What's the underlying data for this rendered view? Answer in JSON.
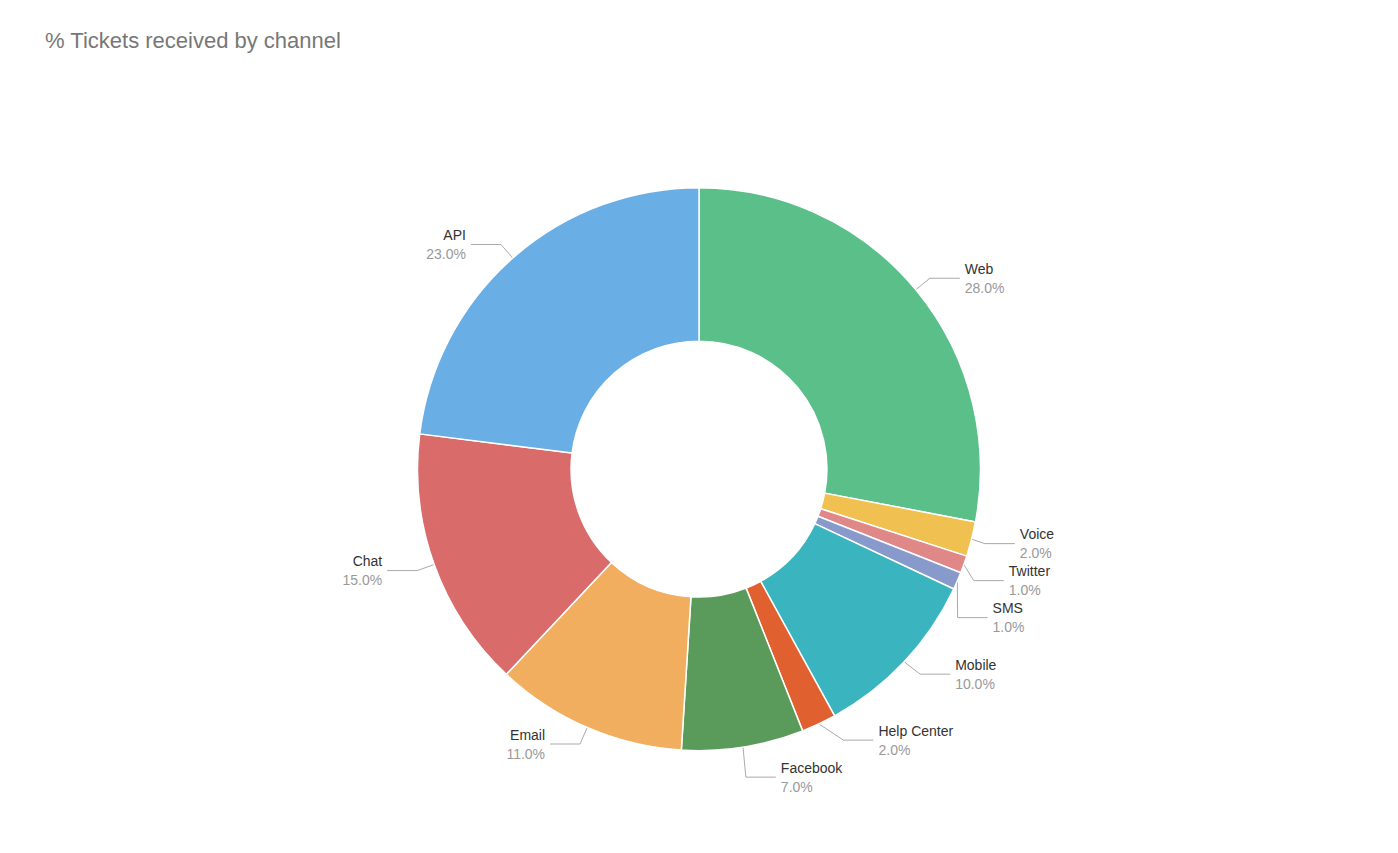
{
  "chart_data": {
    "type": "pie",
    "title": "% Tickets received by channel",
    "categories": [
      "Web",
      "Voice",
      "Twitter",
      "SMS",
      "Mobile",
      "Help Center",
      "Facebook",
      "Email",
      "Chat",
      "API"
    ],
    "values": [
      28.0,
      2.0,
      1.0,
      1.0,
      10.0,
      2.0,
      7.0,
      11.0,
      15.0,
      23.0
    ],
    "value_labels": [
      "28.0%",
      "2.0%",
      "1.0%",
      "1.0%",
      "10.0%",
      "2.0%",
      "7.0%",
      "11.0%",
      "15.0%",
      "23.0%"
    ],
    "colors": [
      "#5bbf8a",
      "#f0c050",
      "#e08888",
      "#8899cc",
      "#3ab5c0",
      "#e06030",
      "#5a9a5a",
      "#f0ae5e",
      "#d96b6b",
      "#6aaee6"
    ],
    "data_labels": true,
    "legend": false
  }
}
